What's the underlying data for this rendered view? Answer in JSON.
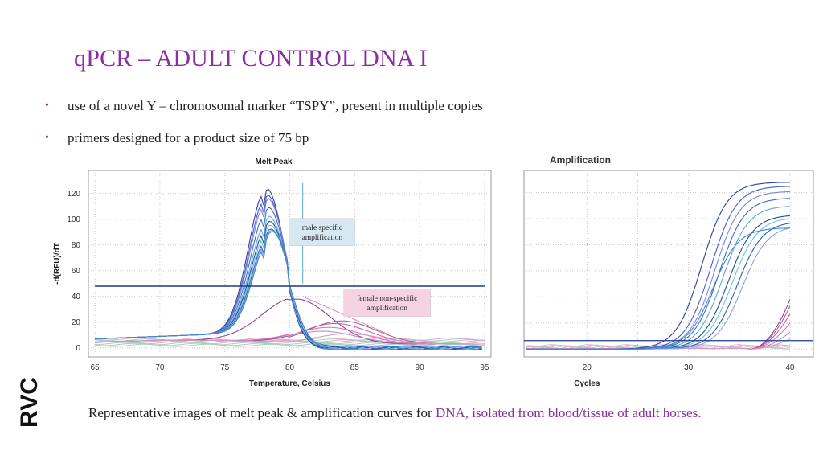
{
  "slide": {
    "title": "qPCR – ADULT CONTROL DNA I",
    "bullets": [
      "use of a novel Y – chromosomal marker “TSPY”, present in multiple copies",
      "primers designed for a product size of 75 bp"
    ],
    "caption_plain": "Representative images of melt peak & amplification curves for ",
    "caption_highlight": "DNA, isolated from blood/tissue of adult horses.",
    "logo_text": "RVC",
    "accent_color": "#8b2ea0"
  },
  "chart_data": [
    {
      "type": "line",
      "title": "Melt Peak",
      "xlabel": "Temperature, Celsius",
      "ylabel": "-d(RFU)/dT",
      "xlim": [
        64.5,
        95.5
      ],
      "ylim": [
        -7,
        138
      ],
      "xticks": [
        65,
        70,
        75,
        80,
        85,
        90,
        95
      ],
      "yticks": [
        0,
        20,
        40,
        60,
        80,
        100,
        120
      ],
      "grid": true,
      "threshold": 48,
      "annotations": [
        {
          "text": [
            "male specific",
            "amplification"
          ],
          "x": 82.5,
          "y": 90,
          "fill": "#d8e8f2"
        },
        {
          "text": [
            "female non-specific",
            "amplification"
          ],
          "x": 87.5,
          "y": 35,
          "fill": "#f6d3e0"
        }
      ],
      "male_peaks": [
        130,
        125,
        122,
        115,
        108,
        104,
        101,
        98,
        97,
        96
      ],
      "female_peaks": [
        38,
        21,
        19,
        16,
        13,
        11
      ]
    },
    {
      "type": "line",
      "title": "Amplification",
      "xlabel": "Cycles",
      "ylabel": "",
      "xlim": [
        13.8,
        42.3
      ],
      "ylim": [
        -6,
        137
      ],
      "xticks": [
        20,
        30,
        40
      ],
      "grid": true,
      "threshold": 6.5,
      "male_plateaus": [
        128,
        125,
        121,
        116,
        110,
        103,
        101,
        98,
        95,
        93
      ],
      "male_midpoints": [
        31.3,
        32.2,
        32.6,
        33.0,
        33.4,
        33.9,
        34.3,
        34.8,
        35.3,
        32.4
      ],
      "female_endpoints": [
        38,
        33,
        27,
        20,
        13,
        8
      ]
    }
  ]
}
